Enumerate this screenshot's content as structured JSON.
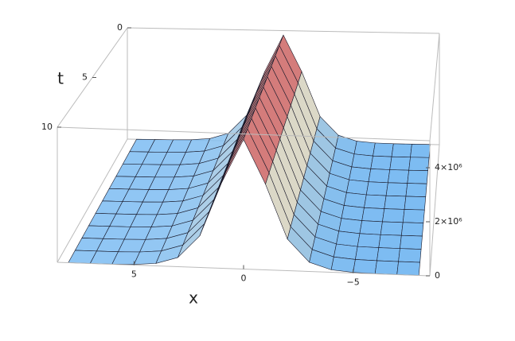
{
  "chart_data": {
    "type": "surface",
    "x_label": "x",
    "t_label": "t",
    "x": [
      8,
      7,
      6,
      5,
      4,
      3,
      2,
      1,
      0,
      -1,
      -2,
      -3,
      -4,
      -5,
      -6,
      -7,
      -8
    ],
    "t": [
      0,
      1,
      2,
      3,
      4,
      5,
      6,
      7,
      8,
      9,
      10
    ],
    "values": [
      400,
      1600,
      6000,
      24000,
      92000,
      340000,
      1170000,
      3170000,
      4800000,
      3170000,
      1170000,
      340000,
      92000,
      24000,
      6000,
      1600,
      400
    ],
    "xlim": [
      8.5,
      -8.5
    ],
    "tlim": [
      0,
      10
    ],
    "zlim": [
      0,
      5000000
    ],
    "xticks": [
      5,
      0,
      {
        "value": -5,
        "label": "−5"
      }
    ],
    "tticks": [
      0,
      5,
      10
    ],
    "zticks": [
      0,
      {
        "value": 2000000,
        "label": "2×10⁶"
      },
      {
        "value": 4000000,
        "label": "4×10⁶"
      }
    ],
    "low_color": "#7dbcf2",
    "mid_color": "#e9dcc0",
    "high_color": "#c63a4c"
  }
}
